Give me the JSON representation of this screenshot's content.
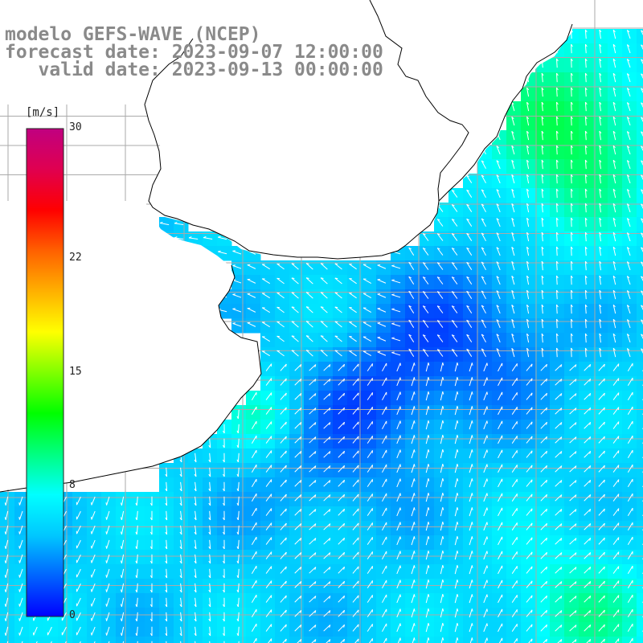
{
  "title": {
    "line1": "modelo GEFS-WAVE (NCEP)",
    "line2": "forecast date: 2023-09-07 12:00:00",
    "line3": "   valid date: 2023-09-13 00:00:00"
  },
  "colorbar": {
    "units": "[m/s]",
    "ticks": [
      "30",
      "22",
      "15",
      "8",
      "0"
    ],
    "tick_values": [
      30,
      22,
      15,
      8,
      0
    ],
    "colors": [
      "#0000ff",
      "#0064ff",
      "#00c8ff",
      "#00ffff",
      "#00ff80",
      "#00ff00",
      "#80ff00",
      "#ffff00",
      "#ffb000",
      "#ff6000",
      "#ff0000",
      "#e00050",
      "#c00080"
    ]
  },
  "map": {
    "land_color": "#ffffff",
    "grid_color": "#aaaaaa",
    "coastline_color": "#000000",
    "arrow_color": "#ffffff"
  }
}
